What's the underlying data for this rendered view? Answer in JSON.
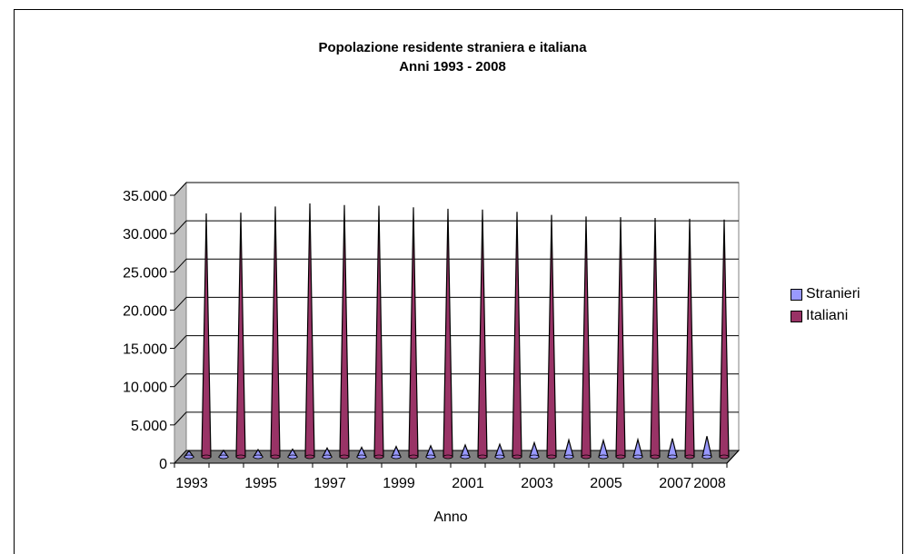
{
  "chart_data": {
    "type": "bar",
    "title_lines": [
      "Popolazione residente straniera e italiana",
      "Anni 1993 - 2008"
    ],
    "xlabel": "Anno",
    "ylabel": "",
    "ylim": [
      0,
      35000
    ],
    "y_ticks": [
      "0",
      "5.000",
      "10.000",
      "15.000",
      "20.000",
      "25.000",
      "30.000",
      "35.000"
    ],
    "x_tick_labels": [
      "1993",
      "1995",
      "1997",
      "1999",
      "2001",
      "2003",
      "2005",
      "2007",
      "2008"
    ],
    "categories": [
      "1993",
      "1994",
      "1995",
      "1996",
      "1997",
      "1998",
      "1999",
      "2000",
      "2001",
      "2002",
      "2003",
      "2004",
      "2005",
      "2006",
      "2007",
      "2008"
    ],
    "series": [
      {
        "name": "Stranieri",
        "color": "#9999ff",
        "values": [
          800,
          850,
          950,
          1000,
          1150,
          1250,
          1350,
          1450,
          1550,
          1650,
          1850,
          2200,
          2150,
          2250,
          2400,
          2700
        ]
      },
      {
        "name": "Italiani",
        "color": "#993366",
        "values": [
          31800,
          31900,
          32700,
          33100,
          32900,
          32800,
          32600,
          32400,
          32300,
          32000,
          31600,
          31400,
          31300,
          31200,
          31100,
          31000
        ]
      }
    ],
    "grid": true,
    "legend": "right"
  }
}
